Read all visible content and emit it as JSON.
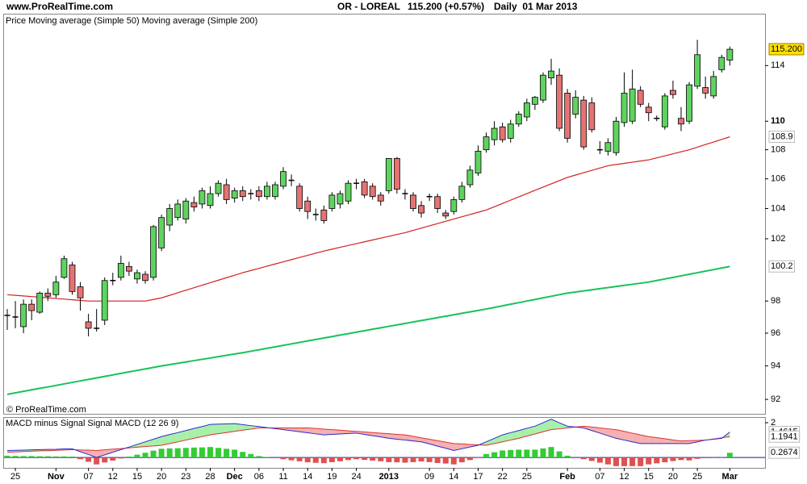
{
  "header": {
    "site": "www.ProRealTime.com",
    "instrument": "OR - LOREAL",
    "quote": "115.200 (+0.57%)",
    "period": "Daily  01 Mar 2013"
  },
  "chart_data": [
    {
      "type": "candlestick",
      "legend_title": "Price",
      "watermark": "© ProRealTime.com",
      "last_label": "115.200",
      "up_color": "#5fd35f",
      "down_color": "#e57373",
      "log": true,
      "ylim": [
        91.2,
        117.8
      ],
      "yticks": [
        92,
        94,
        96,
        98,
        102,
        104,
        106,
        108,
        110,
        114
      ],
      "categories": [
        null,
        "25",
        null,
        null,
        null,
        null,
        "Nov",
        null,
        null,
        null,
        "07",
        null,
        null,
        "12",
        null,
        null,
        "15",
        null,
        null,
        "20",
        null,
        null,
        "23",
        null,
        null,
        "28",
        null,
        null,
        "Dec",
        null,
        null,
        "06",
        null,
        null,
        "11",
        null,
        null,
        "14",
        null,
        null,
        "19",
        null,
        null,
        "24",
        null,
        null,
        null,
        "2013",
        null,
        null,
        null,
        null,
        "09",
        null,
        null,
        "14",
        null,
        null,
        "17",
        null,
        null,
        "22",
        null,
        null,
        "25",
        null,
        null,
        null,
        null,
        "Feb",
        null,
        null,
        null,
        "07",
        null,
        null,
        "12",
        null,
        null,
        "15",
        null,
        null,
        "20",
        null,
        null,
        "25",
        null,
        null,
        null,
        "Mar"
      ],
      "open": [
        97.1,
        97.0,
        96.4,
        97.8,
        97.3,
        98.5,
        98.4,
        99.5,
        100.3,
        98.9,
        96.7,
        96.3,
        96.8,
        99.3,
        99.5,
        100.2,
        99.4,
        99.7,
        99.5,
        101.4,
        102.9,
        103.4,
        103.3,
        104.4,
        104.3,
        104.2,
        105.0,
        105.6,
        104.7,
        105.2,
        105.0,
        105.2,
        104.8,
        104.8,
        105.5,
        105.9,
        105.5,
        104.5,
        103.6,
        103.9,
        104.0,
        104.3,
        104.5,
        105.7,
        105.8,
        105.5,
        104.9,
        105.2,
        107.4,
        105.0,
        104.9,
        104.2,
        104.8,
        104.8,
        103.7,
        103.8,
        104.6,
        105.6,
        106.4,
        108.0,
        108.7,
        109.6,
        108.8,
        109.8,
        110.3,
        111.2,
        111.5,
        113.1,
        113.3,
        112.0,
        110.5,
        111.5,
        111.3,
        108.0,
        107.9,
        107.8,
        109.9,
        110.0,
        112.2,
        111.0,
        110.2,
        109.6,
        112.2,
        110.2,
        110.0,
        112.5,
        112.4,
        111.8,
        113.7,
        114.4
      ],
      "high": [
        97.5,
        98.0,
        98.1,
        98.1,
        98.6,
        98.8,
        99.6,
        100.9,
        100.5,
        99.2,
        97.2,
        97.5,
        99.5,
        99.8,
        100.9,
        100.5,
        100.0,
        99.9,
        102.9,
        103.6,
        104.3,
        104.6,
        104.7,
        104.8,
        105.4,
        105.5,
        105.9,
        106.0,
        105.4,
        105.5,
        105.3,
        105.5,
        105.8,
        105.8,
        106.8,
        106.3,
        105.7,
        104.8,
        104.0,
        104.2,
        105.1,
        105.2,
        105.9,
        106.0,
        106.0,
        105.7,
        105.1,
        107.4,
        107.5,
        105.3,
        105.1,
        104.5,
        105.0,
        105.0,
        103.9,
        104.8,
        105.8,
        106.9,
        108.3,
        109.2,
        110.0,
        109.9,
        110.1,
        110.7,
        111.6,
        111.8,
        113.5,
        114.5,
        113.8,
        112.3,
        112.2,
        111.8,
        111.7,
        108.6,
        108.8,
        110.3,
        113.5,
        113.7,
        112.5,
        111.3,
        110.4,
        112.0,
        112.9,
        111.0,
        112.8,
        115.9,
        113.2,
        113.6,
        114.8,
        115.4
      ],
      "low": [
        96.2,
        96.3,
        96.0,
        96.8,
        97.2,
        98.0,
        98.2,
        99.4,
        98.4,
        97.4,
        95.8,
        96.1,
        96.5,
        99.0,
        99.3,
        99.6,
        99.1,
        99.1,
        99.3,
        101.2,
        102.5,
        103.2,
        103.0,
        103.8,
        104.0,
        104.0,
        104.8,
        104.3,
        104.4,
        104.5,
        104.6,
        104.5,
        104.6,
        104.6,
        105.3,
        105.5,
        103.8,
        103.3,
        103.2,
        103.0,
        103.8,
        104.0,
        104.3,
        105.3,
        104.7,
        104.6,
        104.2,
        105.0,
        105.0,
        104.6,
        103.8,
        103.4,
        104.5,
        103.7,
        103.3,
        103.6,
        104.4,
        105.4,
        106.2,
        107.8,
        108.3,
        108.5,
        108.5,
        109.6,
        110.0,
        110.8,
        111.3,
        112.6,
        109.3,
        108.5,
        110.2,
        108.0,
        109.2,
        107.7,
        107.6,
        107.6,
        109.6,
        109.8,
        111.0,
        110.0,
        110.0,
        109.4,
        111.6,
        109.3,
        109.8,
        112.3,
        111.6,
        111.6,
        113.5,
        114.0
      ],
      "close": [
        97.1,
        97.0,
        97.8,
        97.4,
        98.5,
        98.3,
        99.2,
        100.7,
        98.6,
        98.2,
        96.3,
        96.3,
        99.3,
        99.3,
        100.4,
        99.9,
        99.8,
        99.3,
        102.8,
        103.4,
        104.0,
        104.3,
        104.5,
        104.1,
        105.2,
        105.0,
        105.7,
        104.6,
        105.2,
        104.8,
        105.0,
        104.8,
        105.5,
        105.6,
        106.5,
        105.9,
        104.0,
        103.8,
        103.6,
        103.2,
        104.9,
        105.0,
        105.7,
        105.7,
        104.9,
        104.8,
        104.5,
        107.4,
        105.3,
        105.0,
        104.0,
        103.7,
        104.8,
        104.0,
        103.5,
        104.6,
        105.5,
        106.6,
        107.9,
        108.9,
        109.5,
        108.7,
        109.8,
        110.5,
        111.3,
        111.7,
        113.3,
        113.6,
        109.5,
        108.8,
        111.7,
        108.2,
        109.4,
        108.0,
        108.5,
        110.0,
        112.0,
        112.3,
        111.2,
        110.6,
        110.2,
        111.8,
        111.9,
        109.8,
        112.6,
        114.8,
        112.0,
        113.2,
        114.6,
        115.2
      ],
      "series": [
        {
          "name": "Moving average (Simple 50)",
          "color": "#d42020",
          "values": [
            98.4,
            98.36,
            98.32,
            98.28,
            98.24,
            98.2,
            98.16,
            98.12,
            98.08,
            98.04,
            98.0,
            98.0,
            98.0,
            98.0,
            98.0,
            98.0,
            98.0,
            98.0,
            98.1,
            98.2,
            98.36,
            98.52,
            98.68,
            98.84,
            99.0,
            99.16,
            99.32,
            99.48,
            99.64,
            99.8,
            99.94,
            100.08,
            100.22,
            100.36,
            100.5,
            100.64,
            100.78,
            100.92,
            101.06,
            101.2,
            101.32,
            101.44,
            101.56,
            101.68,
            101.8,
            101.92,
            102.04,
            102.16,
            102.28,
            102.4,
            102.55,
            102.7,
            102.85,
            103.0,
            103.15,
            103.3,
            103.45,
            103.6,
            103.75,
            103.9,
            104.12,
            104.34,
            104.56,
            104.78,
            105.0,
            105.22,
            105.44,
            105.66,
            105.88,
            106.1,
            106.26,
            106.42,
            106.58,
            106.74,
            106.9,
            106.98,
            107.06,
            107.14,
            107.22,
            107.3,
            107.44,
            107.58,
            107.72,
            107.86,
            108.0,
            108.18,
            108.36,
            108.54,
            108.72,
            108.9
          ]
        },
        {
          "name": "Moving average (Simple 200)",
          "color": "#16c35a",
          "values": [
            92.3,
            92.39,
            92.48,
            92.57,
            92.66,
            92.74,
            92.83,
            92.92,
            93.01,
            93.1,
            93.19,
            93.28,
            93.37,
            93.46,
            93.55,
            93.64,
            93.73,
            93.82,
            93.91,
            94.0,
            94.08,
            94.16,
            94.24,
            94.32,
            94.4,
            94.48,
            94.56,
            94.64,
            94.72,
            94.8,
            94.89,
            94.98,
            95.07,
            95.16,
            95.25,
            95.34,
            95.43,
            95.52,
            95.61,
            95.7,
            95.79,
            95.88,
            95.97,
            96.06,
            96.15,
            96.24,
            96.33,
            96.42,
            96.51,
            96.6,
            96.69,
            96.78,
            96.87,
            96.96,
            97.05,
            97.14,
            97.23,
            97.32,
            97.41,
            97.5,
            97.6,
            97.7,
            97.8,
            97.9,
            98.0,
            98.1,
            98.2,
            98.3,
            98.4,
            98.5,
            98.57,
            98.64,
            98.71,
            98.78,
            98.85,
            98.92,
            98.99,
            99.06,
            99.13,
            99.2,
            99.3,
            99.4,
            99.5,
            99.6,
            99.7,
            99.8,
            99.9,
            100.0,
            100.1,
            100.2
          ]
        }
      ]
    },
    {
      "type": "macd",
      "ylim": [
        -0.6,
        2.28
      ],
      "yticks": [
        2
      ],
      "series": [
        {
          "name": "MACD minus Signal",
          "color": "#33cc33",
          "neg_color": "#e05050",
          "kind": "bar",
          "values": [
            0.1,
            0.09,
            0.08,
            0.08,
            0.07,
            0.07,
            0.06,
            0.06,
            0.05,
            -0.1,
            -0.25,
            -0.4,
            -0.29,
            -0.18,
            -0.06,
            0.05,
            0.16,
            0.27,
            0.39,
            0.5,
            0.52,
            0.53,
            0.55,
            0.57,
            0.58,
            0.6,
            0.55,
            0.5,
            0.45,
            0.32,
            0.2,
            0.08,
            0.02,
            -0.04,
            -0.1,
            -0.16,
            -0.22,
            -0.28,
            -0.31,
            -0.33,
            -0.27,
            -0.22,
            -0.15,
            -0.1,
            -0.14,
            -0.18,
            -0.22,
            -0.27,
            -0.28,
            -0.3,
            -0.27,
            -0.23,
            -0.27,
            -0.32,
            -0.35,
            -0.4,
            -0.28,
            -0.15,
            -0.03,
            0.2,
            0.3,
            0.4,
            0.43,
            0.45,
            0.45,
            0.45,
            0.52,
            0.6,
            0.35,
            0.1,
            0.0,
            -0.1,
            -0.2,
            -0.3,
            -0.4,
            -0.5,
            -0.5,
            -0.5,
            -0.5,
            -0.4,
            -0.34,
            -0.28,
            -0.21,
            -0.15,
            -0.17,
            -0.08,
            0.0,
            -0.01,
            -0.03,
            0.2674
          ]
        },
        {
          "name": "Signal",
          "color": "#e03030",
          "values": [
            0.3,
            0.32,
            0.34,
            0.36,
            0.38,
            0.39,
            0.41,
            0.43,
            0.45,
            0.43,
            0.42,
            0.4,
            0.44,
            0.48,
            0.51,
            0.55,
            0.59,
            0.63,
            0.66,
            0.7,
            0.8,
            0.9,
            1.0,
            1.1,
            1.2,
            1.3,
            1.37,
            1.43,
            1.5,
            1.57,
            1.63,
            1.7,
            1.7,
            1.7,
            1.7,
            1.7,
            1.7,
            1.7,
            1.67,
            1.63,
            1.6,
            1.57,
            1.53,
            1.5,
            1.47,
            1.43,
            1.4,
            1.37,
            1.33,
            1.3,
            1.22,
            1.13,
            1.05,
            0.97,
            0.88,
            0.8,
            0.78,
            0.75,
            0.73,
            0.7,
            0.8,
            0.9,
            1.0,
            1.1,
            1.23,
            1.35,
            1.48,
            1.6,
            1.65,
            1.7,
            1.75,
            1.8,
            1.75,
            1.7,
            1.65,
            1.6,
            1.5,
            1.4,
            1.3,
            1.2,
            1.14,
            1.08,
            1.01,
            0.95,
            0.97,
            0.98,
            1.0,
            1.06,
            1.13,
            1.1941
          ]
        },
        {
          "name": "MACD (12 26 9)",
          "color": "#2a2ad0",
          "values": [
            0.4,
            0.41,
            0.42,
            0.44,
            0.45,
            0.46,
            0.47,
            0.49,
            0.5,
            0.33,
            0.17,
            0.0,
            0.15,
            0.3,
            0.45,
            0.6,
            0.75,
            0.9,
            1.05,
            1.2,
            1.32,
            1.43,
            1.55,
            1.67,
            1.78,
            1.9,
            1.92,
            1.93,
            1.95,
            1.89,
            1.83,
            1.78,
            1.72,
            1.66,
            1.6,
            1.54,
            1.48,
            1.42,
            1.36,
            1.3,
            1.33,
            1.35,
            1.38,
            1.4,
            1.33,
            1.25,
            1.18,
            1.1,
            1.05,
            1.0,
            0.95,
            0.9,
            0.78,
            0.65,
            0.53,
            0.4,
            0.5,
            0.6,
            0.7,
            0.9,
            1.1,
            1.3,
            1.43,
            1.55,
            1.68,
            1.8,
            2.0,
            2.2,
            2.0,
            1.8,
            1.75,
            1.7,
            1.55,
            1.4,
            1.25,
            1.1,
            1.0,
            0.9,
            0.8,
            0.8,
            0.8,
            0.8,
            0.8,
            0.8,
            0.8,
            0.9,
            1.0,
            1.05,
            1.1,
            1.4615
          ]
        }
      ]
    }
  ]
}
